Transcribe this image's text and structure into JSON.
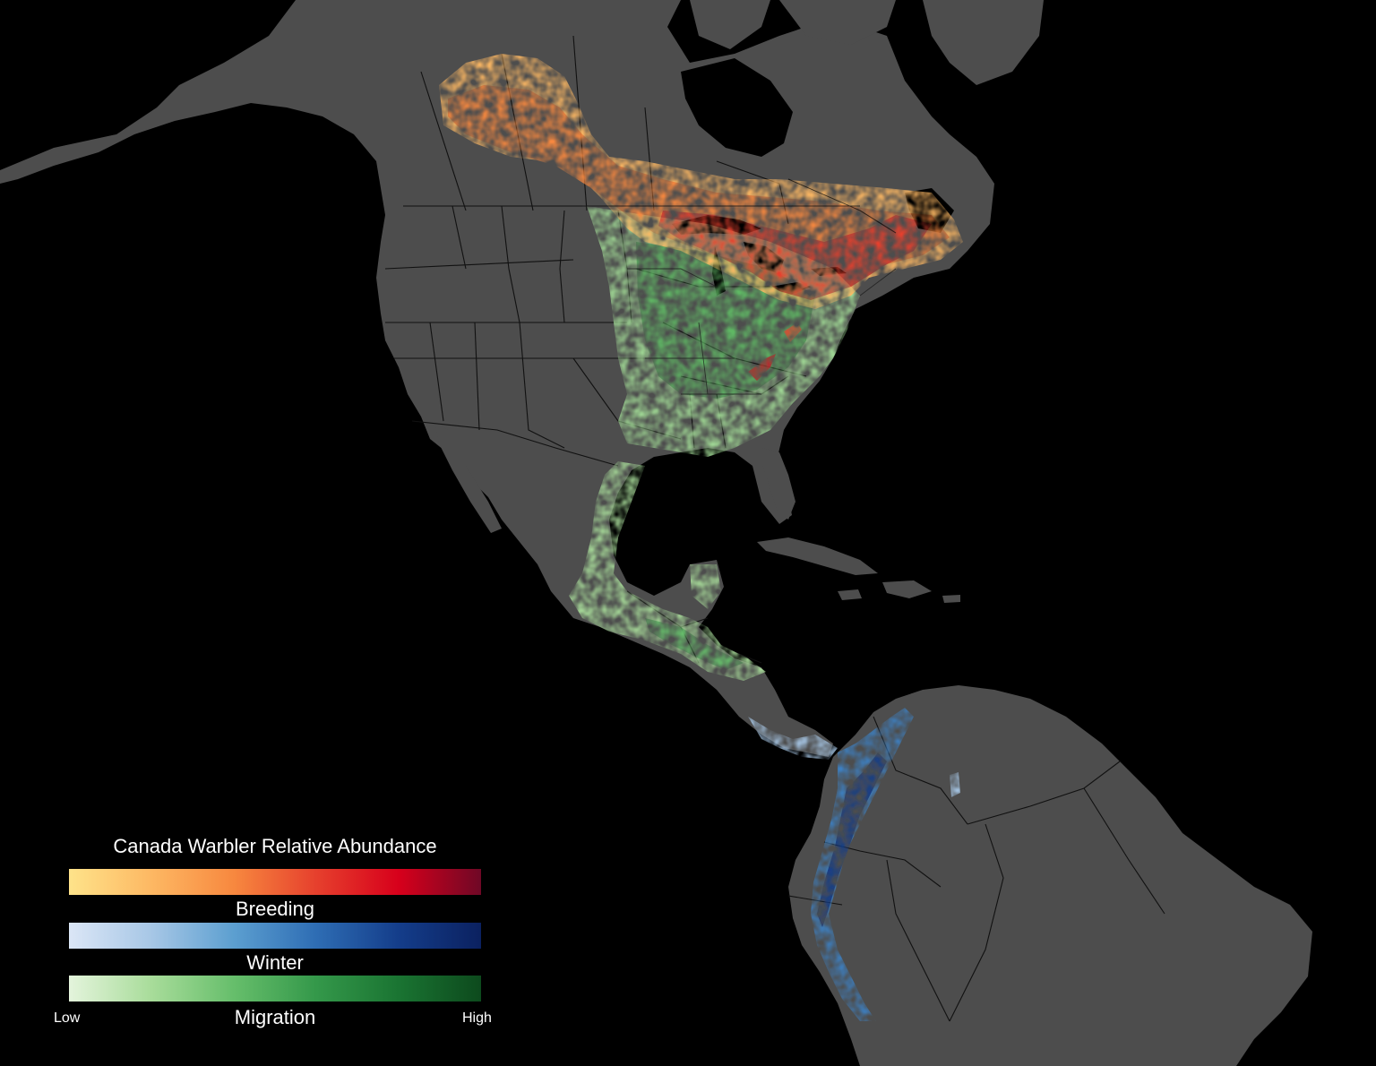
{
  "map": {
    "species": "Canada Warbler",
    "colors": {
      "ocean": "#000000",
      "land": "#4d4d4d",
      "borders": "#111111"
    }
  },
  "legend": {
    "title": "Canada Warbler Relative Abundance",
    "scales": [
      {
        "label": "Breeding",
        "colors": [
          "#fee38a",
          "#fdb863",
          "#f7883f",
          "#e6402d",
          "#d7001b",
          "#6f0826"
        ]
      },
      {
        "label": "Winter",
        "colors": [
          "#dbe6f6",
          "#a7c7e6",
          "#5c9fd0",
          "#2e6db4",
          "#143d8a",
          "#0b2160"
        ]
      },
      {
        "label": "Migration",
        "colors": [
          "#e4f4dc",
          "#a8dc9a",
          "#66be6b",
          "#34984a",
          "#1a7432",
          "#0d4a1d"
        ]
      }
    ],
    "low_label": "Low",
    "high_label": "High"
  }
}
